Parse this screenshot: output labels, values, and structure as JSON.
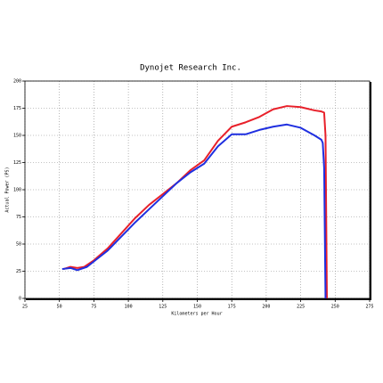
{
  "chart_data": {
    "type": "line",
    "title": "Dynojet Research Inc.",
    "x_label": "Kilometers per Hour",
    "y_label": "Actual Power (PS)",
    "xlim": [
      25,
      275
    ],
    "xticks": [
      25,
      50,
      75,
      100,
      125,
      150,
      175,
      200,
      225,
      250,
      275
    ],
    "ylim": [
      0,
      200
    ],
    "yticks": [
      0,
      25,
      50,
      75,
      100,
      125,
      150,
      175,
      200
    ],
    "grid": true,
    "series": [
      {
        "color": "#e8202a",
        "x": [
          53,
          58,
          63,
          68,
          75,
          85,
          95,
          105,
          115,
          125,
          135,
          145,
          155,
          165,
          175,
          185,
          195,
          205,
          215,
          225,
          235,
          240,
          242,
          243,
          244
        ],
        "values": [
          27,
          29,
          28,
          29,
          35,
          46,
          60,
          74,
          86,
          96,
          106,
          118,
          127,
          145,
          158,
          162,
          167,
          174,
          177,
          176,
          173,
          172,
          171,
          150,
          0
        ]
      },
      {
        "color": "#1f2fe0",
        "x": [
          52,
          58,
          63,
          70,
          75,
          85,
          95,
          105,
          115,
          125,
          135,
          145,
          155,
          165,
          175,
          185,
          195,
          205,
          215,
          225,
          235,
          240,
          241,
          242,
          243
        ],
        "values": [
          27,
          28,
          26,
          29,
          34,
          44,
          57,
          70,
          82,
          94,
          106,
          116,
          124,
          140,
          151,
          151,
          155,
          158,
          160,
          157,
          150,
          146,
          143,
          120,
          0
        ]
      }
    ]
  }
}
